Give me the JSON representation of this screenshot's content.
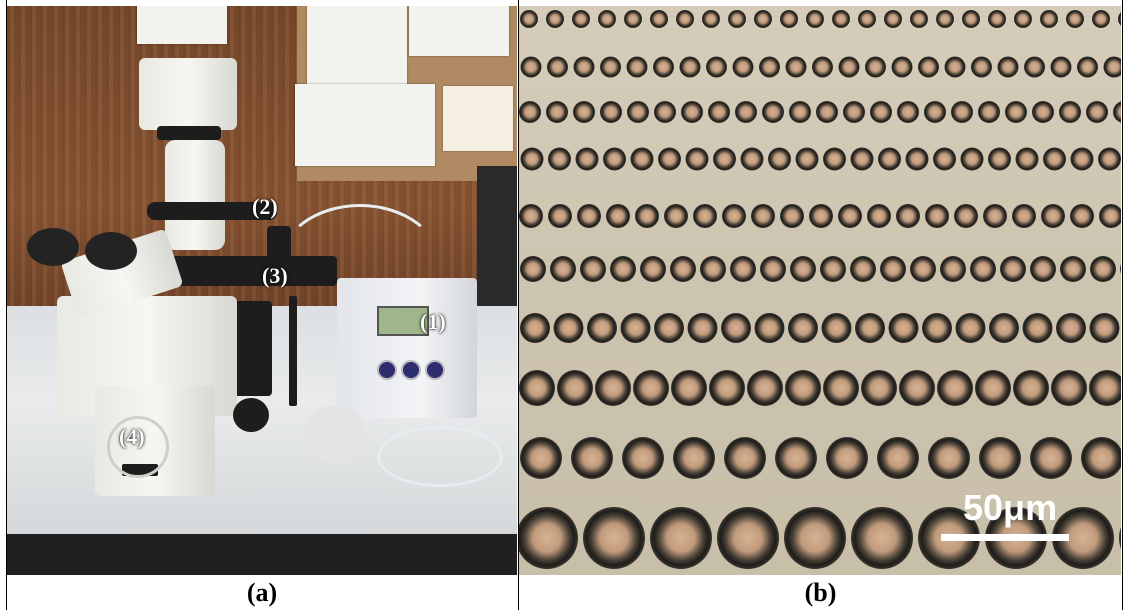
{
  "panel_a": {
    "caption": "(a)",
    "labels": [
      "(1)",
      "(2)",
      "(3)",
      "(4)"
    ]
  },
  "panel_b": {
    "caption": "(b)",
    "scale_bar_label": "50μm"
  },
  "colors": {
    "background": "#ffffff",
    "wood_wall": "#7a4a2b",
    "micrograph_bg": "#cfc6b2",
    "droplet_rim": "#2a2a24",
    "droplet_core": "#c9a689"
  }
}
